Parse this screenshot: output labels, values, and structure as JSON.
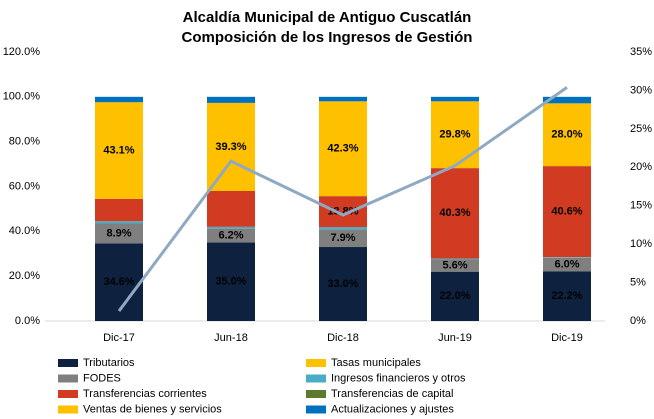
{
  "chart_data": {
    "type": "stacked_bar_line",
    "title": "Alcaldía Municipal de Antiguo Cuscatlán",
    "subtitle": "Composición de los Ingresos de Gestión",
    "categories": [
      "Dic-17",
      "Jun-18",
      "Dic-18",
      "Jun-19",
      "Dic-19"
    ],
    "ylim": [
      0,
      120
    ],
    "yticks": [
      {
        "value": 0,
        "label": "0.0%"
      },
      {
        "value": 20,
        "label": "20.0%"
      },
      {
        "value": 40,
        "label": "40.0%"
      },
      {
        "value": 60,
        "label": "60.0%"
      },
      {
        "value": 80,
        "label": "80.0%"
      },
      {
        "value": 100,
        "label": "100.0%"
      },
      {
        "value": 120,
        "label": "120.0%"
      }
    ],
    "y2lim": [
      0,
      35
    ],
    "y2ticks": [
      {
        "value": 0,
        "label": "0%"
      },
      {
        "value": 5,
        "label": "5%"
      },
      {
        "value": 10,
        "label": "10%"
      },
      {
        "value": 15,
        "label": "15%"
      },
      {
        "value": 20,
        "label": "20%"
      },
      {
        "value": 25,
        "label": "25%"
      },
      {
        "value": 30,
        "label": "30%"
      },
      {
        "value": 35,
        "label": "35%"
      }
    ],
    "series": [
      {
        "name": "Tributarios",
        "color": "#0e2240",
        "label_color": "#ffffff",
        "values": [
          34.6,
          35.0,
          33.0,
          22.0,
          22.2
        ],
        "value_labels": [
          "34.6%",
          "35.0%",
          "33.0%",
          "22.0%",
          "22.2%"
        ]
      },
      {
        "name": "FODES",
        "color": "#7f7f7f",
        "label_color": "#000000",
        "values": [
          8.9,
          6.2,
          7.9,
          5.6,
          6.0
        ],
        "value_labels": [
          "8.9%",
          "6.2%",
          "7.9%",
          "5.6%",
          "6.0%"
        ]
      },
      {
        "name": "Ingresos financieros y otros",
        "color": "#4bacc6",
        "values": [
          1.0,
          0.8,
          1.0,
          0.3,
          0.3
        ]
      },
      {
        "name": "Transferencias corrientes",
        "color": "#d13b22",
        "label_color": "#000000",
        "values": [
          10.0,
          16.0,
          13.8,
          40.3,
          40.6
        ],
        "value_labels": [
          null,
          null,
          "13.8%",
          "40.3%",
          "40.6%"
        ]
      },
      {
        "name": "Transferencias de capital",
        "color": "#5b7a2e",
        "values": [
          0,
          0,
          0,
          0,
          0
        ]
      },
      {
        "name": "Tasas municipales",
        "color": "#ffc000",
        "label_color": "#000000",
        "values": [
          43.1,
          39.3,
          42.3,
          29.8,
          28.0
        ],
        "value_labels": [
          "43.1%",
          "39.3%",
          "42.3%",
          "29.8%",
          "28.0%"
        ]
      },
      {
        "name": "Ventas de bienes y servicios",
        "color": "#ffc000",
        "values": [
          0,
          0,
          0,
          0,
          0
        ]
      },
      {
        "name": "Actualizaciones y ajustes",
        "color": "#0070c0",
        "values": [
          2.4,
          2.7,
          2.0,
          2.0,
          2.9
        ]
      },
      {
        "type": "line",
        "axis": "y2",
        "color": "#8ea9c1",
        "values": [
          1.3,
          20.8,
          13.8,
          20.2,
          30.4
        ]
      }
    ],
    "legend_order": [
      0,
      5,
      1,
      2,
      3,
      4,
      6,
      7
    ]
  }
}
